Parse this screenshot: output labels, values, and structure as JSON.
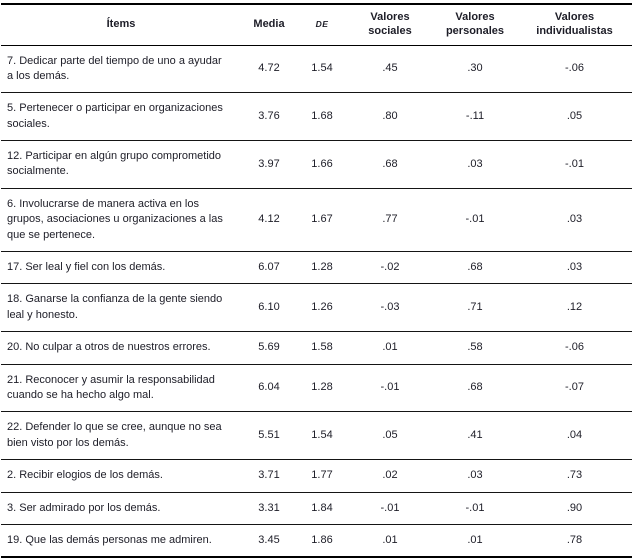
{
  "table": {
    "columns": [
      {
        "key": "item",
        "label": "Ítems"
      },
      {
        "key": "media",
        "label": "Media"
      },
      {
        "key": "de",
        "label": "DE"
      },
      {
        "key": "sociales",
        "label": "Valores sociales"
      },
      {
        "key": "personales",
        "label": "Valores personales"
      },
      {
        "key": "individualistas",
        "label": "Valores individualistas"
      }
    ],
    "rows": [
      {
        "item": "7. Dedicar parte del tiempo de uno a ayudar a los demás.",
        "media": "4.72",
        "de": "1.54",
        "sociales": ".45",
        "personales": ".30",
        "individualistas": "-.06"
      },
      {
        "item": "5. Pertenecer o participar en organizaciones sociales.",
        "media": "3.76",
        "de": "1.68",
        "sociales": ".80",
        "personales": "-.11",
        "individualistas": ".05"
      },
      {
        "item": "12. Participar en algún grupo comprometido socialmente.",
        "media": "3.97",
        "de": "1.66",
        "sociales": ".68",
        "personales": ".03",
        "individualistas": "-.01"
      },
      {
        "item": "6. Involucrarse de manera activa en los grupos, asociaciones u organizaciones a las que se pertenece.",
        "media": "4.12",
        "de": "1.67",
        "sociales": ".77",
        "personales": "-.01",
        "individualistas": ".03"
      },
      {
        "item": "17. Ser leal y fiel con los demás.",
        "media": "6.07",
        "de": "1.28",
        "sociales": "-.02",
        "personales": ".68",
        "individualistas": ".03"
      },
      {
        "item": "18. Ganarse la confianza de la gente siendo leal y honesto.",
        "media": "6.10",
        "de": "1.26",
        "sociales": "-.03",
        "personales": ".71",
        "individualistas": ".12"
      },
      {
        "item": "20. No culpar a otros de nuestros errores.",
        "media": "5.69",
        "de": "1.58",
        "sociales": ".01",
        "personales": ".58",
        "individualistas": "-.06"
      },
      {
        "item": "21. Reconocer y asumir la responsabilidad cuando se ha hecho algo mal.",
        "media": "6.04",
        "de": "1.28",
        "sociales": "-.01",
        "personales": ".68",
        "individualistas": "-.07"
      },
      {
        "item": "22. Defender lo que se cree, aunque no sea bien visto por los demás.",
        "media": "5.51",
        "de": "1.54",
        "sociales": ".05",
        "personales": ".41",
        "individualistas": ".04"
      },
      {
        "item": "2. Recibir elogios de los demás.",
        "media": "3.71",
        "de": "1.77",
        "sociales": ".02",
        "personales": ".03",
        "individualistas": ".73"
      },
      {
        "item": "3. Ser admirado por los demás.",
        "media": "3.31",
        "de": "1.84",
        "sociales": "-.01",
        "personales": "-.01",
        "individualistas": ".90"
      },
      {
        "item": "19. Que las demás personas me admiren.",
        "media": "3.45",
        "de": "1.86",
        "sociales": ".01",
        "personales": ".01",
        "individualistas": ".78"
      }
    ]
  }
}
